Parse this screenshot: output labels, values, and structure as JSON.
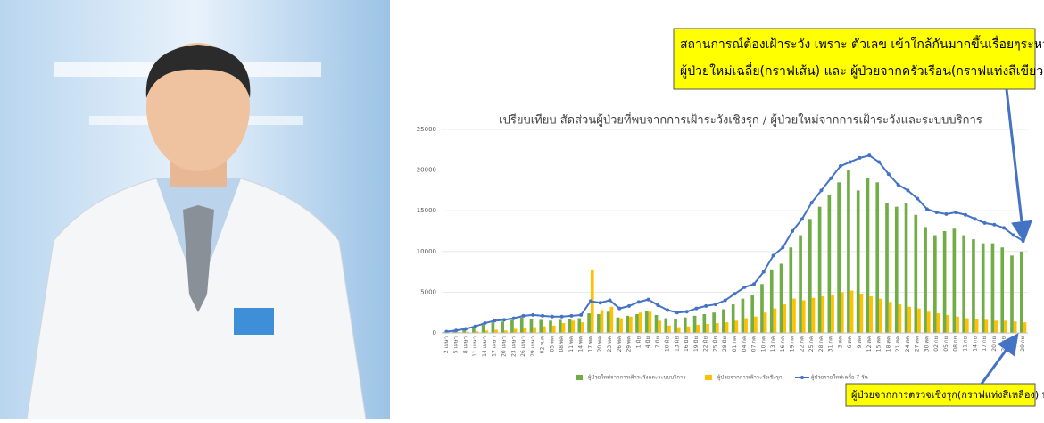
{
  "chart_data": {
    "type": "bar",
    "title": "เปรียบเทียบ สัดส่วนผู้ป่วยที่พบจากการเฝ้าระวังเชิงรุก / ผู้ป่วยใหม่จากการเฝ้าระวังและระบบบริการ",
    "categories": [
      "2 เมษา",
      "5 เมษา",
      "8 เมษา",
      "11 เมษา",
      "14 เมษา",
      "17 เมษา",
      "20 เมษา",
      "23 เมษา",
      "26 เมษา",
      "29 เมษา",
      "02 พ.ค",
      "05 พค",
      "08 พค",
      "11 พค",
      "14 พค",
      "17 พค",
      "20 พค",
      "23 พค",
      "26 พค",
      "29 พค",
      "1 มิย",
      "4 มิย",
      "7 มิย",
      "10 มิย",
      "13 มิย",
      "16 มิย",
      "19 มิย",
      "22 มิย",
      "25 มิย",
      "28 มิย",
      "01 กค",
      "04 กค",
      "07 กค",
      "10 กค",
      "13 กค",
      "16 กค",
      "19 กค",
      "22 กค",
      "25 กค",
      "28 กค",
      "31 กค",
      "3 สค",
      "6 สค",
      "9 สค",
      "12 สค",
      "15 สค",
      "18 สค",
      "21 สค",
      "24 สค",
      "27 สค",
      "30 สค",
      "02 กย",
      "05 กย",
      "08 กย",
      "11 กย",
      "14 กย",
      "17 กย",
      "20 กย",
      "23 กย",
      "26 กย",
      "29 กย"
    ],
    "series": [
      {
        "name": "ผู้ป่วยใหม่จากการเฝ้าระวังและระบบบริการ",
        "color": "#70ad47",
        "type": "bar",
        "values": [
          100,
          250,
          450,
          700,
          1000,
          1300,
          1400,
          1600,
          1900,
          1700,
          1600,
          1500,
          1600,
          1700,
          1800,
          2400,
          2300,
          2600,
          1900,
          2100,
          2300,
          2700,
          2200,
          1800,
          1700,
          1900,
          2100,
          2300,
          2500,
          2900,
          3500,
          4200,
          4600,
          6000,
          7800,
          8500,
          10500,
          12000,
          14000,
          15500,
          17000,
          18500,
          20000,
          17500,
          19000,
          18500,
          16000,
          15500,
          16000,
          14500,
          13000,
          12000,
          12500,
          12800,
          12000,
          11500,
          11000,
          11000,
          10500,
          9500,
          10000
        ]
      },
      {
        "name": "ผู้ป่วยจากการเฝ้าระวังเชิงรุก",
        "color": "#ffc000",
        "type": "bar",
        "values": [
          50,
          100,
          150,
          200,
          300,
          400,
          300,
          500,
          600,
          700,
          800,
          900,
          1200,
          1500,
          1300,
          7800,
          2800,
          3200,
          1800,
          2000,
          2500,
          2600,
          1500,
          900,
          700,
          800,
          1000,
          1100,
          1200,
          1300,
          1500,
          1800,
          2000,
          2500,
          3000,
          3500,
          4200,
          4000,
          4300,
          4500,
          4600,
          5000,
          5200,
          4800,
          4500,
          4200,
          3800,
          3500,
          3200,
          3000,
          2600,
          2400,
          2200,
          2000,
          1800,
          1700,
          1600,
          1500,
          1500,
          1400,
          1300
        ]
      },
      {
        "name": "ผู้ป่วยรายใหม่เฉลี่ย 7 วัน",
        "color": "#4472c4",
        "type": "line",
        "values": [
          150,
          300,
          500,
          800,
          1200,
          1500,
          1600,
          1800,
          2100,
          2200,
          2100,
          2000,
          2000,
          2100,
          2200,
          3900,
          3700,
          4000,
          3000,
          3300,
          3800,
          4100,
          3400,
          2800,
          2500,
          2600,
          3000,
          3300,
          3500,
          4000,
          4800,
          5600,
          6000,
          7500,
          9500,
          10500,
          12500,
          14000,
          16000,
          17500,
          19000,
          20500,
          21000,
          21500,
          21800,
          21000,
          19500,
          18200,
          17500,
          16500,
          15200,
          14800,
          14600,
          14800,
          14500,
          14000,
          13500,
          13300,
          12900,
          12000,
          11300
        ]
      }
    ],
    "ylim": [
      0,
      25000
    ],
    "yticks": [
      0,
      5000,
      10000,
      15000,
      20000,
      25000
    ],
    "grid": true,
    "annotations": [
      "สถานการณ์ต้องเฝ้าระวัง เพราะ ตัวเลข เข้าใกล้กันมากขึ้นเรื่อยๆระหว่าง",
      "ผู้ป่วยใหม่เฉลี่ย(กราฟเส้น) และ ผู้ป่วยจากครัวเรือน(กราฟแท่งสีเขียว)",
      "ผู้ป่วยจากการตรวจเชิงรุก(กราฟแท่งสีเหลือง) น้อยลง"
    ]
  }
}
